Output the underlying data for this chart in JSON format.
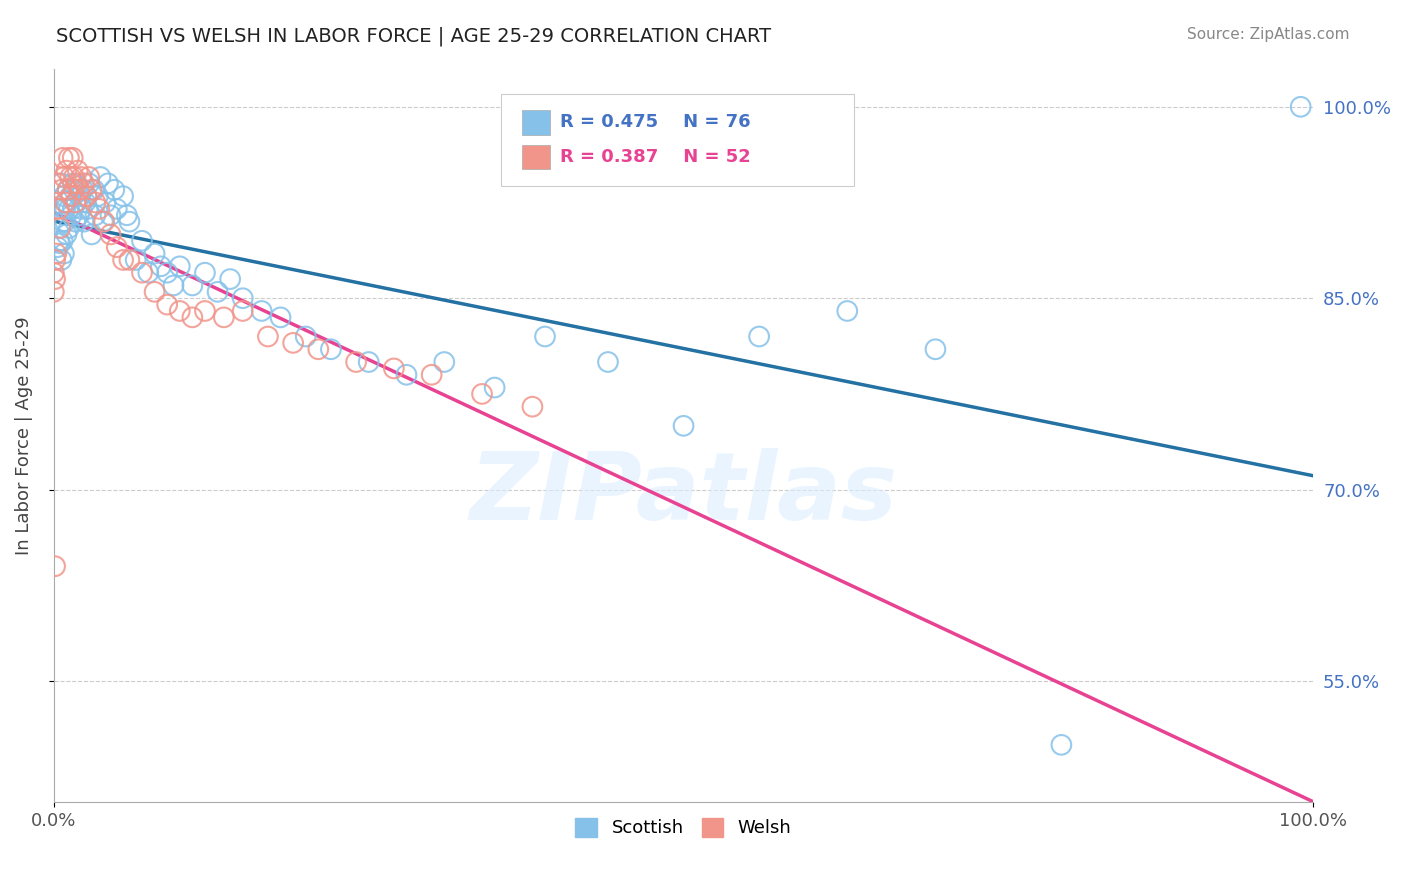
{
  "title": "SCOTTISH VS WELSH IN LABOR FORCE | AGE 25-29 CORRELATION CHART",
  "source_text": "Source: ZipAtlas.com",
  "ylabel": "In Labor Force | Age 25-29",
  "r_scottish": 0.475,
  "n_scottish": 76,
  "r_welsh": 0.387,
  "n_welsh": 52,
  "scottish_color": "#85c1e9",
  "welsh_color": "#f1948a",
  "scottish_line_color": "#2471a3",
  "welsh_line_color": "#e84393",
  "xlim": [
    0.0,
    1.0
  ],
  "ylim": [
    0.455,
    1.03
  ],
  "right_yticks": [
    0.55,
    0.7,
    0.85,
    1.0
  ],
  "right_ytick_labels": [
    "55.0%",
    "70.0%",
    "85.0%",
    "100.0%"
  ],
  "grid_yticks": [
    0.55,
    0.7,
    0.85,
    1.0
  ],
  "watermark_text": "ZIPatlas",
  "scottish_x": [
    0.003,
    0.004,
    0.005,
    0.006,
    0.006,
    0.007,
    0.007,
    0.008,
    0.008,
    0.009,
    0.009,
    0.01,
    0.01,
    0.011,
    0.012,
    0.012,
    0.013,
    0.014,
    0.015,
    0.015,
    0.016,
    0.017,
    0.018,
    0.019,
    0.02,
    0.021,
    0.022,
    0.023,
    0.024,
    0.025,
    0.026,
    0.027,
    0.028,
    0.03,
    0.032,
    0.033,
    0.035,
    0.037,
    0.039,
    0.041,
    0.043,
    0.045,
    0.048,
    0.05,
    0.055,
    0.058,
    0.06,
    0.065,
    0.07,
    0.075,
    0.08,
    0.085,
    0.09,
    0.095,
    0.1,
    0.11,
    0.12,
    0.13,
    0.14,
    0.15,
    0.165,
    0.18,
    0.2,
    0.22,
    0.25,
    0.28,
    0.31,
    0.35,
    0.39,
    0.44,
    0.5,
    0.56,
    0.63,
    0.7,
    0.8,
    0.99
  ],
  "scottish_y": [
    0.89,
    0.895,
    0.893,
    0.94,
    0.88,
    0.91,
    0.895,
    0.93,
    0.885,
    0.92,
    0.91,
    0.925,
    0.9,
    0.935,
    0.92,
    0.905,
    0.93,
    0.915,
    0.94,
    0.92,
    0.935,
    0.91,
    0.925,
    0.938,
    0.915,
    0.93,
    0.92,
    0.935,
    0.91,
    0.925,
    0.93,
    0.92,
    0.94,
    0.9,
    0.935,
    0.915,
    0.93,
    0.945,
    0.91,
    0.925,
    0.94,
    0.915,
    0.935,
    0.92,
    0.93,
    0.915,
    0.91,
    0.88,
    0.895,
    0.87,
    0.885,
    0.875,
    0.87,
    0.86,
    0.875,
    0.86,
    0.87,
    0.855,
    0.865,
    0.85,
    0.84,
    0.835,
    0.82,
    0.81,
    0.8,
    0.79,
    0.8,
    0.78,
    0.82,
    0.8,
    0.75,
    0.82,
    0.84,
    0.81,
    0.5,
    1.0
  ],
  "welsh_x": [
    0.002,
    0.003,
    0.004,
    0.005,
    0.006,
    0.007,
    0.008,
    0.009,
    0.01,
    0.011,
    0.012,
    0.013,
    0.014,
    0.015,
    0.016,
    0.017,
    0.018,
    0.019,
    0.02,
    0.022,
    0.024,
    0.026,
    0.028,
    0.03,
    0.033,
    0.036,
    0.04,
    0.045,
    0.05,
    0.055,
    0.06,
    0.07,
    0.08,
    0.09,
    0.1,
    0.11,
    0.12,
    0.135,
    0.15,
    0.17,
    0.19,
    0.21,
    0.24,
    0.27,
    0.3,
    0.34,
    0.38,
    0.0,
    0.0,
    0.001,
    0.001,
    0.001
  ],
  "welsh_y": [
    0.885,
    0.94,
    0.92,
    0.905,
    0.935,
    0.96,
    0.945,
    0.925,
    0.95,
    0.935,
    0.96,
    0.945,
    0.93,
    0.96,
    0.945,
    0.925,
    0.94,
    0.95,
    0.935,
    0.945,
    0.94,
    0.93,
    0.945,
    0.935,
    0.925,
    0.92,
    0.91,
    0.9,
    0.89,
    0.88,
    0.88,
    0.87,
    0.855,
    0.845,
    0.84,
    0.835,
    0.84,
    0.835,
    0.84,
    0.82,
    0.815,
    0.81,
    0.8,
    0.795,
    0.79,
    0.775,
    0.765,
    0.87,
    0.855,
    0.88,
    0.865,
    0.64
  ]
}
